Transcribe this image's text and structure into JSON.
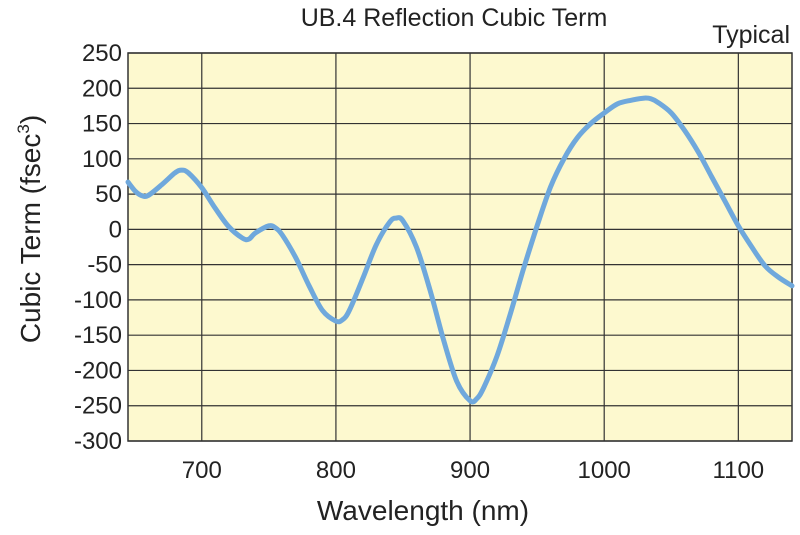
{
  "chart_data": {
    "type": "line",
    "title": "UB.4 Reflection Cubic Term",
    "note": "Typical",
    "xlabel": "Wavelength (nm)",
    "ylabel": "Cubic Term (fsec",
    "ylabel_superscript": "3",
    "ylabel_close": ")",
    "xlim": [
      645,
      1140
    ],
    "ylim": [
      -300,
      250
    ],
    "x_ticks": [
      700,
      800,
      900,
      1000,
      1100
    ],
    "y_ticks": [
      250,
      200,
      150,
      100,
      50,
      0,
      -50,
      -100,
      -150,
      -200,
      -250,
      -300
    ],
    "grid": true,
    "series": [
      {
        "color": "#6fa8dc",
        "x": [
          645,
          650,
          655,
          660,
          670,
          680,
          685,
          690,
          700,
          710,
          720,
          730,
          735,
          740,
          750,
          755,
          760,
          770,
          780,
          790,
          800,
          805,
          810,
          820,
          830,
          840,
          845,
          850,
          860,
          870,
          880,
          890,
          900,
          905,
          910,
          920,
          930,
          940,
          950,
          960,
          970,
          980,
          990,
          1000,
          1010,
          1020,
          1030,
          1035,
          1040,
          1050,
          1060,
          1070,
          1080,
          1090,
          1100,
          1110,
          1120,
          1130,
          1140
        ],
        "y": [
          67,
          55,
          48,
          48,
          63,
          80,
          84,
          80,
          59,
          30,
          4,
          -12,
          -14,
          -5,
          5,
          2,
          -8,
          -40,
          -80,
          -115,
          -130,
          -128,
          -115,
          -70,
          -22,
          10,
          16,
          12,
          -25,
          -85,
          -155,
          -215,
          -243,
          -240,
          -225,
          -180,
          -120,
          -55,
          5,
          60,
          100,
          130,
          150,
          165,
          178,
          183,
          186,
          185,
          180,
          165,
          140,
          110,
          75,
          40,
          5,
          -25,
          -52,
          -68,
          -80
        ]
      }
    ]
  }
}
